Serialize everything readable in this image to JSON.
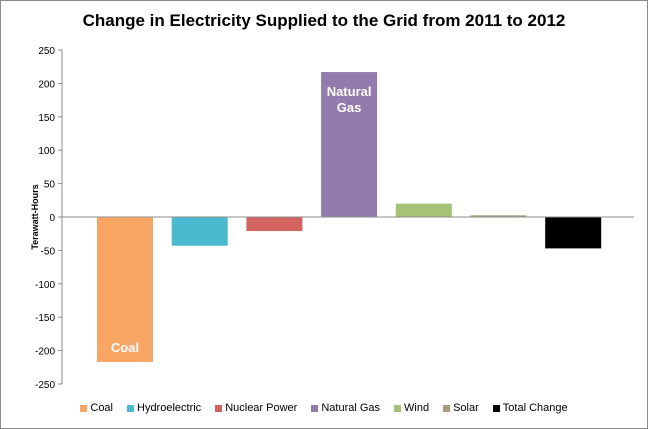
{
  "chart_data": {
    "type": "bar",
    "title": "Change in Electricity Supplied to the Grid from 2011 to 2012",
    "xlabel": "",
    "ylabel": "Terawatt-Hours",
    "ylim": [
      -250,
      250
    ],
    "yticks": [
      250,
      200,
      150,
      100,
      50,
      0,
      -50,
      -100,
      -150,
      -200,
      -250
    ],
    "grid": false,
    "legend_position": "bottom",
    "categories": [
      "Coal",
      "Hydroelectric",
      "Nuclear Power",
      "Natural Gas",
      "Wind",
      "Solar",
      "Total Change"
    ],
    "values": [
      -217,
      -43,
      -21,
      217,
      20,
      2.5,
      -47
    ],
    "colors": [
      "#f9a665",
      "#4bb9cf",
      "#d2635f",
      "#937cad",
      "#a6c276",
      "#a59d7b",
      "#000000"
    ],
    "bar_labels": [
      {
        "category": "Coal",
        "text": "Coal"
      },
      {
        "category": "Natural Gas",
        "text": "Natural Gas"
      }
    ]
  }
}
